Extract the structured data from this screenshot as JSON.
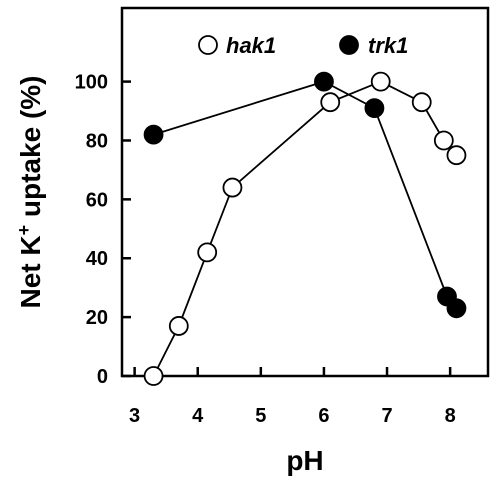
{
  "chart_data": {
    "type": "line",
    "xlabel": "pH",
    "ylabel_parts": {
      "prefix": "Net K",
      "superscript": "+",
      "suffix": " uptake (%)"
    },
    "xlim": [
      2.8,
      8.6
    ],
    "ylim": [
      0,
      125
    ],
    "x_ticks": [
      3,
      4,
      5,
      6,
      7,
      8
    ],
    "y_ticks": [
      0,
      20,
      40,
      60,
      80,
      100
    ],
    "grid": false,
    "legend_position": "top",
    "series": [
      {
        "name": "hak1",
        "marker": "open-circle",
        "color": "#000000",
        "fill": "#ffffff",
        "x": [
          3.3,
          3.7,
          4.15,
          4.55,
          6.1,
          6.9,
          7.55,
          7.9,
          8.1
        ],
        "y": [
          0,
          17,
          42,
          64,
          93,
          100,
          93,
          80,
          75
        ]
      },
      {
        "name": "trk1",
        "marker": "filled-circle",
        "color": "#000000",
        "fill": "#000000",
        "x": [
          3.3,
          6.0,
          6.8,
          7.95,
          8.1
        ],
        "y": [
          82,
          100,
          91,
          27,
          23
        ]
      }
    ]
  }
}
